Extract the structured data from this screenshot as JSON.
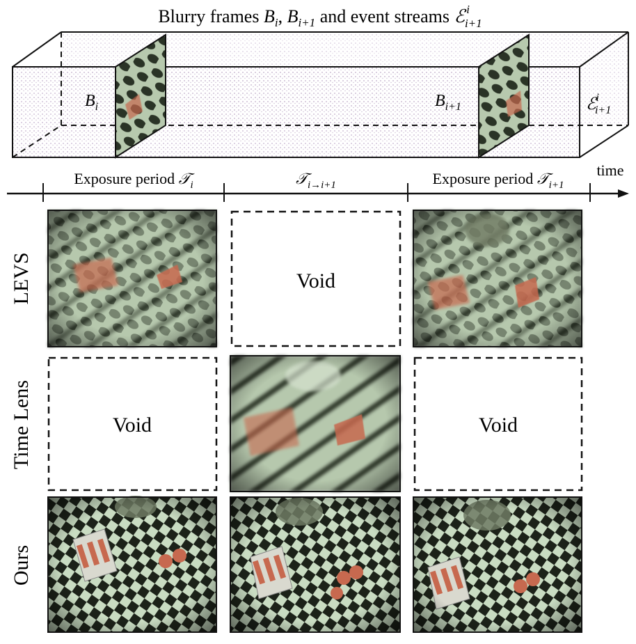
{
  "figure": {
    "title_prefix": "Blurry frames ",
    "title_math": "B",
    "title_sub_i": "i",
    "title_sep": ", ",
    "title_sub_i1": "i+1",
    "title_mid": " and event streams ",
    "title_event": "ℰ",
    "title_event_sup": "i",
    "title_event_sub": "i+1"
  },
  "cube": {
    "frame_left_label": "B",
    "frame_left_sub": "i",
    "frame_right_label": "B",
    "frame_right_sub": "i+1",
    "events_label": "ℰ",
    "events_sup": "i",
    "events_sub": "i+1"
  },
  "timeline": {
    "axis_label": "time",
    "period1_text": "Exposure period ",
    "period1_sym": "𝒯",
    "period1_sub": "i",
    "gap_sym": "𝒯",
    "gap_sub": "i→i+1",
    "period2_text": "Exposure period ",
    "period2_sym": "𝒯",
    "period2_sub": "i+1"
  },
  "rows": [
    {
      "label": "LEVS",
      "cells": [
        "image",
        "Void",
        "image"
      ]
    },
    {
      "label": "Time Lens",
      "cells": [
        "Void",
        "image",
        "Void"
      ]
    },
    {
      "label": "Ours",
      "cells": [
        "image",
        "image",
        "image"
      ]
    }
  ],
  "void_text": "Void",
  "colors": {
    "board_light": "#c9dcc2",
    "board_dark": "#1c2219",
    "object_red": "#c7694f",
    "event_purple": "#b9a3c4"
  }
}
